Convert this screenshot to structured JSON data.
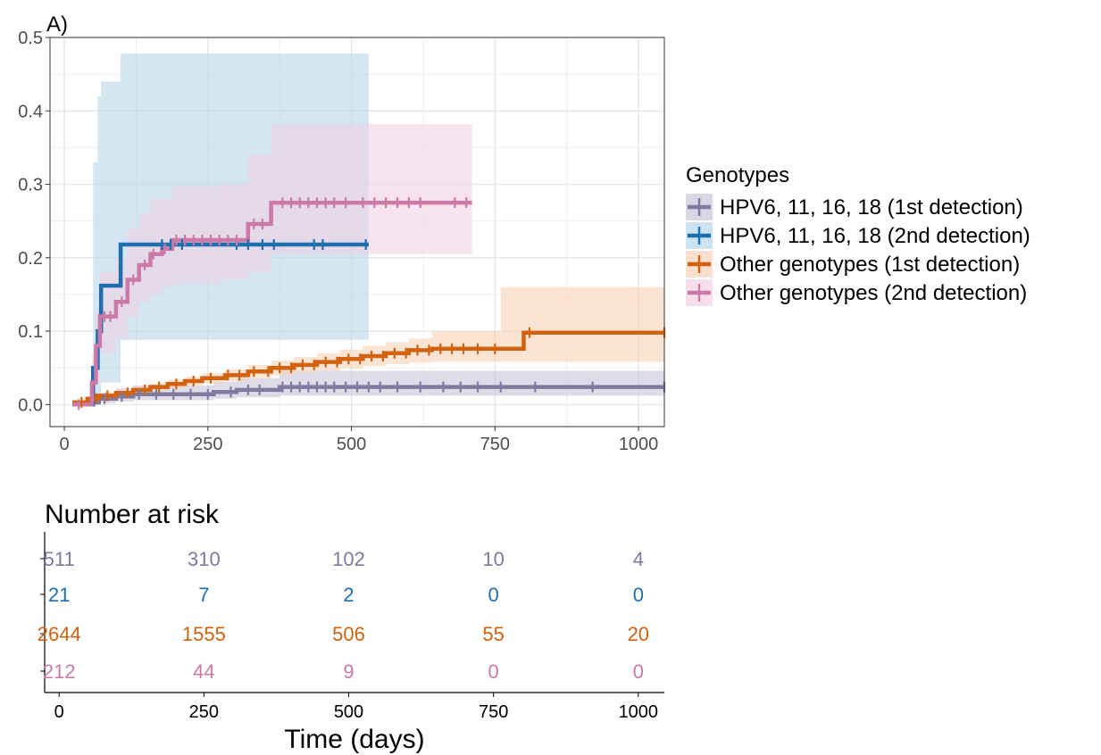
{
  "panel_label": "A)",
  "legend": {
    "title": "Genotypes",
    "items": [
      "HPV6, 11, 16, 18 (1st detection)",
      "HPV6, 11, 16, 18 (2nd detection)",
      "Other genotypes (1st detection)",
      "Other genotypes (2nd detection)"
    ]
  },
  "colors": {
    "hpv_1st": "#7f7a9e",
    "hpv_2nd": "#1f6fae",
    "other_1st": "#d2620f",
    "other_2nd": "#cc79a7",
    "band_hpv_1st": "#c9c5dc",
    "band_hpv_2nd": "#b5d6ea",
    "band_other_1st": "#f6d3b9",
    "band_other_2nd": "#f2d2e3"
  },
  "risk_table": {
    "title": "Number at risk",
    "x_title": "Time (days)",
    "times": [
      0,
      250,
      500,
      750,
      1000
    ],
    "tick_labels": [
      "0",
      "250",
      "500",
      "750",
      "1000"
    ],
    "rows": [
      {
        "values": [
          "511",
          "310",
          "102",
          "10",
          "4"
        ],
        "color_key": "hpv_1st"
      },
      {
        "values": [
          "21",
          "7",
          "2",
          "0",
          "0"
        ],
        "color_key": "hpv_2nd"
      },
      {
        "values": [
          "2644",
          "1555",
          "506",
          "55",
          "20"
        ],
        "color_key": "other_1st"
      },
      {
        "values": [
          "212",
          "44",
          "9",
          "0",
          "0"
        ],
        "color_key": "other_2nd"
      }
    ]
  },
  "chart_data": {
    "type": "line",
    "title": "",
    "xlabel": "",
    "ylabel": "",
    "xlim": [
      -25,
      1045
    ],
    "ylim": [
      -0.03,
      0.5
    ],
    "xticks": [
      0,
      250,
      500,
      750,
      1000
    ],
    "yticks": [
      0.0,
      0.1,
      0.2,
      0.3,
      0.4,
      0.5
    ],
    "xtick_labels": [
      "0",
      "250",
      "500",
      "750",
      "1000"
    ],
    "ytick_labels": [
      "0.0",
      "0.1",
      "0.2",
      "0.3",
      "0.4",
      "0.5"
    ],
    "grid": true,
    "legend_position": "right",
    "series": [
      {
        "name": "HPV6, 11, 16, 18 (1st detection)",
        "color_key": "hpv_1st",
        "band_key": "band_hpv_1st",
        "steps": [
          [
            14,
            0.0
          ],
          [
            40,
            0.003
          ],
          [
            60,
            0.008
          ],
          [
            90,
            0.011
          ],
          [
            120,
            0.014
          ],
          [
            260,
            0.017
          ],
          [
            300,
            0.02
          ],
          [
            375,
            0.024
          ],
          [
            1045,
            0.024
          ]
        ],
        "band": [
          [
            14,
            0.0,
            0.0
          ],
          [
            40,
            0.0,
            0.008
          ],
          [
            60,
            0.002,
            0.016
          ],
          [
            90,
            0.004,
            0.022
          ],
          [
            120,
            0.006,
            0.026
          ],
          [
            260,
            0.008,
            0.031
          ],
          [
            300,
            0.01,
            0.036
          ],
          [
            375,
            0.012,
            0.046
          ],
          [
            1045,
            0.012,
            0.046
          ]
        ],
        "censor_x": [
          70,
          100,
          130,
          160,
          190,
          220,
          250,
          290,
          320,
          340,
          380,
          395,
          410,
          425,
          440,
          455,
          470,
          490,
          510,
          530,
          550,
          580,
          620,
          660,
          690,
          720,
          760,
          820,
          920,
          1045
        ]
      },
      {
        "name": "HPV6, 11, 16, 18 (2nd detection)",
        "color_key": "hpv_2nd",
        "band_key": "band_hpv_2nd",
        "steps": [
          [
            14,
            0.0
          ],
          [
            44,
            0.0
          ],
          [
            50,
            0.05
          ],
          [
            58,
            0.1
          ],
          [
            64,
            0.162
          ],
          [
            98,
            0.218
          ],
          [
            530,
            0.218
          ]
        ],
        "band": [
          [
            14,
            0.0,
            0.0
          ],
          [
            44,
            0.0,
            0.0
          ],
          [
            50,
            0.0,
            0.33
          ],
          [
            58,
            0.01,
            0.42
          ],
          [
            64,
            0.03,
            0.44
          ],
          [
            98,
            0.088,
            0.478
          ],
          [
            530,
            0.088,
            0.478
          ]
        ],
        "censor_x": [
          170,
          185,
          205,
          300,
          320,
          345,
          365,
          435,
          450,
          525
        ]
      },
      {
        "name": "Other genotypes (1st detection)",
        "color_key": "other_1st",
        "band_key": "band_other_1st",
        "steps": [
          [
            14,
            0.003
          ],
          [
            40,
            0.008
          ],
          [
            60,
            0.012
          ],
          [
            90,
            0.016
          ],
          [
            120,
            0.02
          ],
          [
            150,
            0.024
          ],
          [
            180,
            0.028
          ],
          [
            210,
            0.032
          ],
          [
            240,
            0.036
          ],
          [
            280,
            0.04
          ],
          [
            320,
            0.045
          ],
          [
            360,
            0.05
          ],
          [
            400,
            0.054
          ],
          [
            440,
            0.058
          ],
          [
            480,
            0.062
          ],
          [
            520,
            0.066
          ],
          [
            560,
            0.07
          ],
          [
            600,
            0.074
          ],
          [
            640,
            0.076
          ],
          [
            800,
            0.098
          ],
          [
            1045,
            0.098
          ]
        ],
        "band": [
          [
            14,
            0.0,
            0.006
          ],
          [
            40,
            0.005,
            0.011
          ],
          [
            60,
            0.009,
            0.016
          ],
          [
            90,
            0.012,
            0.02
          ],
          [
            120,
            0.016,
            0.025
          ],
          [
            150,
            0.019,
            0.029
          ],
          [
            180,
            0.022,
            0.034
          ],
          [
            210,
            0.026,
            0.038
          ],
          [
            240,
            0.029,
            0.043
          ],
          [
            280,
            0.032,
            0.048
          ],
          [
            320,
            0.036,
            0.054
          ],
          [
            360,
            0.04,
            0.06
          ],
          [
            400,
            0.043,
            0.065
          ],
          [
            440,
            0.046,
            0.07
          ],
          [
            480,
            0.049,
            0.075
          ],
          [
            520,
            0.052,
            0.08
          ],
          [
            560,
            0.055,
            0.085
          ],
          [
            600,
            0.057,
            0.09
          ],
          [
            640,
            0.058,
            0.1
          ],
          [
            760,
            0.058,
            0.16
          ],
          [
            1045,
            0.058,
            0.16
          ]
        ],
        "censor_x": [
          30,
          55,
          75,
          110,
          140,
          165,
          195,
          225,
          255,
          285,
          305,
          330,
          355,
          375,
          395,
          415,
          435,
          455,
          475,
          495,
          515,
          535,
          555,
          575,
          595,
          615,
          635,
          655,
          675,
          695,
          720,
          750,
          810,
          1045
        ]
      },
      {
        "name": "Other genotypes (2nd detection)",
        "color_key": "other_2nd",
        "band_key": "band_other_2nd",
        "steps": [
          [
            14,
            0.0
          ],
          [
            40,
            0.0
          ],
          [
            48,
            0.03
          ],
          [
            55,
            0.08
          ],
          [
            62,
            0.12
          ],
          [
            90,
            0.14
          ],
          [
            110,
            0.17
          ],
          [
            130,
            0.19
          ],
          [
            150,
            0.205
          ],
          [
            170,
            0.212
          ],
          [
            188,
            0.224
          ],
          [
            320,
            0.246
          ],
          [
            360,
            0.275
          ],
          [
            710,
            0.275
          ]
        ],
        "band": [
          [
            14,
            0.0,
            0.0
          ],
          [
            40,
            0.0,
            0.0
          ],
          [
            48,
            0.0,
            0.07
          ],
          [
            55,
            0.03,
            0.13
          ],
          [
            62,
            0.07,
            0.18
          ],
          [
            90,
            0.09,
            0.2
          ],
          [
            110,
            0.12,
            0.24
          ],
          [
            130,
            0.14,
            0.26
          ],
          [
            150,
            0.15,
            0.28
          ],
          [
            170,
            0.16,
            0.28
          ],
          [
            188,
            0.164,
            0.298
          ],
          [
            270,
            0.17,
            0.3
          ],
          [
            320,
            0.18,
            0.34
          ],
          [
            360,
            0.205,
            0.382
          ],
          [
            710,
            0.205,
            0.382
          ]
        ],
        "censor_x": [
          25,
          70,
          80,
          100,
          120,
          140,
          155,
          175,
          195,
          210,
          225,
          240,
          255,
          270,
          285,
          300,
          330,
          345,
          380,
          395,
          410,
          425,
          440,
          455,
          470,
          490,
          520,
          540,
          560,
          580,
          600,
          620,
          680,
          700
        ]
      }
    ]
  }
}
